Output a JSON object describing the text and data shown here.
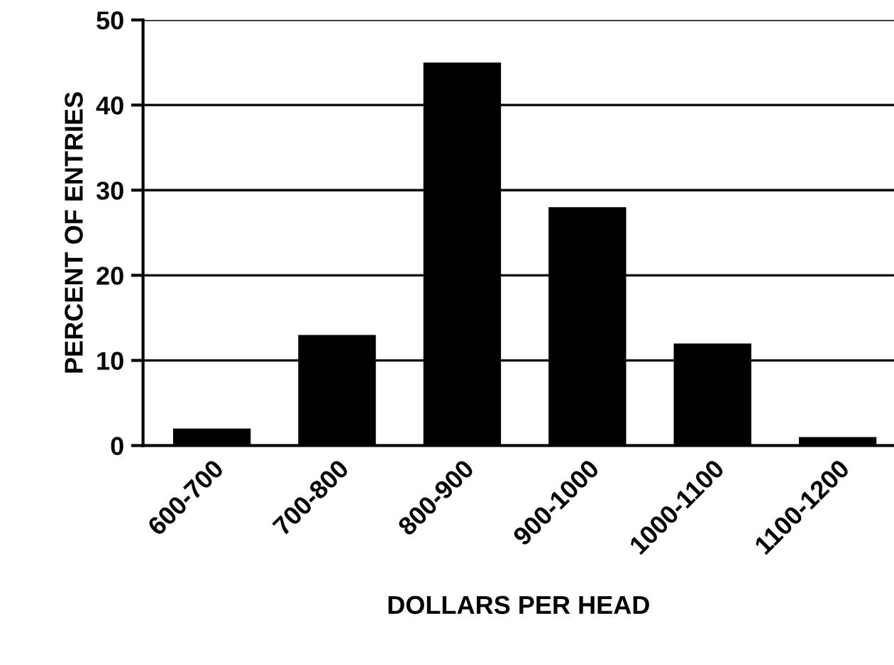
{
  "chart_data": {
    "type": "bar",
    "xlabel": "DOLLARS PER HEAD",
    "ylabel": "PERCENT OF ENTRIES",
    "categories": [
      "600-700",
      "700-800",
      "800-900",
      "900-1000",
      "1000-1100",
      "1100-1200"
    ],
    "values": [
      2,
      13,
      45,
      28,
      12,
      1
    ],
    "color": "#000000",
    "ylim": [
      0,
      50
    ],
    "yticks": [
      0,
      10,
      20,
      30,
      40,
      50
    ],
    "grid": "y",
    "legend": false
  }
}
